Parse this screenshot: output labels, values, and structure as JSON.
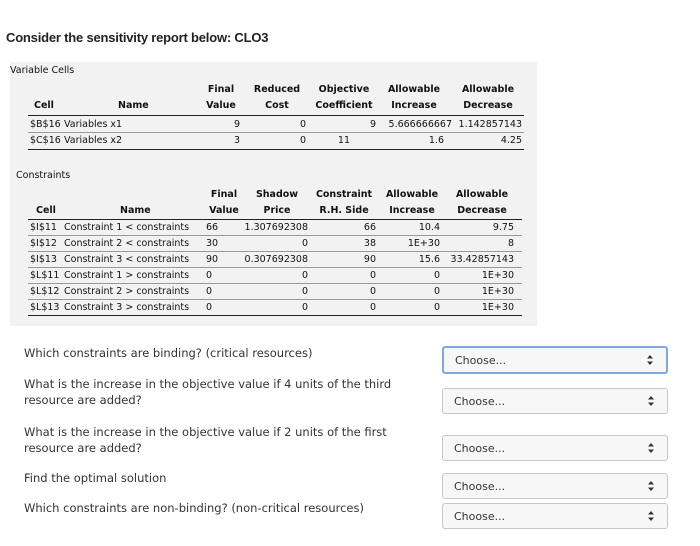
{
  "heading": "Consider the sensitivity report below: CLO3",
  "variable_cells": {
    "section_title": "Variable Cells",
    "headers": {
      "final1": "Final",
      "final2": "Value",
      "reduced1": "Reduced",
      "reduced2": "Cost",
      "objective1": "Objective",
      "objective2": "Coefficient",
      "allow_inc1": "Allowable",
      "allow_inc2": "Increase",
      "allow_dec1": "Allowable",
      "allow_dec2": "Decrease",
      "cell": "Cell",
      "name": "Name"
    },
    "rows": [
      {
        "cell": "$B$16",
        "name": "Variables x1",
        "final": "9",
        "reduced": "0",
        "objective": "9",
        "increase": "5.666666667",
        "decrease": "1.142857143"
      },
      {
        "cell": "$C$16",
        "name": "Variables x2",
        "final": "3",
        "reduced": "0",
        "objective": "11",
        "increase": "1.6",
        "decrease": "4.25"
      }
    ]
  },
  "constraints": {
    "section_title": "Constraints",
    "headers": {
      "final1": "Final",
      "final2": "Value",
      "shadow1": "Shadow",
      "shadow2": "Price",
      "rhs1": "Constraint",
      "rhs2": "R.H. Side",
      "allow_inc1": "Allowable",
      "allow_inc2": "Increase",
      "allow_dec1": "Allowable",
      "allow_dec2": "Decrease",
      "cell": "Cell",
      "name": "Name"
    },
    "rows": [
      {
        "cell": "$I$11",
        "name": "Constraint 1 < constraints",
        "final": "66",
        "shadow": "1.307692308",
        "rhs": "66",
        "increase": "10.4",
        "decrease": "9.75"
      },
      {
        "cell": "$I$12",
        "name": "Constraint 2 < constraints",
        "final": "30",
        "shadow": "0",
        "rhs": "38",
        "increase": "1E+30",
        "decrease": "8"
      },
      {
        "cell": "$I$13",
        "name": "Constraint 3 < constraints",
        "final": "90",
        "shadow": "0.307692308",
        "rhs": "90",
        "increase": "15.6",
        "decrease": "33.42857143"
      },
      {
        "cell": "$L$11",
        "name": "Constraint 1 > constraints",
        "final": "0",
        "shadow": "0",
        "rhs": "0",
        "increase": "0",
        "decrease": "1E+30"
      },
      {
        "cell": "$L$12",
        "name": "Constraint 2 > constraints",
        "final": "0",
        "shadow": "0",
        "rhs": "0",
        "increase": "0",
        "decrease": "1E+30"
      },
      {
        "cell": "$L$13",
        "name": "Constraint 3 > constraints",
        "final": "0",
        "shadow": "0",
        "rhs": "0",
        "increase": "0",
        "decrease": "1E+30"
      }
    ]
  },
  "questions": [
    {
      "line1": "Which constraints are binding? (critical resources)",
      "line2": ""
    },
    {
      "line1": "What is the increase in the objective value if 4 units of the third",
      "line2": "resource are added?"
    },
    {
      "line1": "What is the increase in the objective value if 2 units of the first",
      "line2": "resource are added?"
    },
    {
      "line1": "Find the optimal solution",
      "line2": ""
    },
    {
      "line1": "Which constraints are non-binding? (non-critical resources)",
      "line2": ""
    }
  ],
  "selects": [
    {
      "value": "Choose..."
    },
    {
      "value": "Choose..."
    },
    {
      "value": "Choose..."
    },
    {
      "value": "Choose..."
    },
    {
      "value": "Choose..."
    }
  ]
}
